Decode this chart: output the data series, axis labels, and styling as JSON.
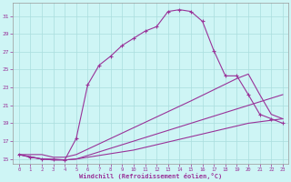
{
  "xlabel": "Windchill (Refroidissement éolien,°C)",
  "background_color": "#cef5f5",
  "grid_color": "#aadddd",
  "line_color": "#993399",
  "xlim": [
    -0.5,
    23.5
  ],
  "ylim": [
    14.5,
    32.5
  ],
  "yticks": [
    15,
    17,
    19,
    21,
    23,
    25,
    27,
    29,
    31
  ],
  "xticks": [
    0,
    1,
    2,
    3,
    4,
    5,
    6,
    7,
    8,
    9,
    10,
    11,
    12,
    13,
    14,
    15,
    16,
    17,
    18,
    19,
    20,
    21,
    22,
    23
  ],
  "series1_x": [
    0,
    1,
    2,
    3,
    4,
    5,
    6,
    7,
    8,
    9,
    10,
    11,
    12,
    13,
    14,
    15,
    16,
    17,
    18,
    19,
    20,
    21,
    22,
    23
  ],
  "series1_y": [
    15.5,
    15.2,
    15.0,
    15.0,
    14.9,
    17.3,
    23.3,
    25.5,
    26.5,
    27.7,
    28.5,
    29.3,
    29.8,
    31.5,
    31.7,
    31.5,
    30.4,
    27.1,
    24.3,
    24.3,
    22.2,
    20.0,
    19.5,
    19.0
  ],
  "series2_x": [
    0,
    2,
    3,
    4,
    5,
    10,
    15,
    19,
    20,
    21,
    22,
    23
  ],
  "series2_y": [
    15.5,
    15.5,
    15.2,
    15.2,
    15.5,
    18.5,
    21.5,
    24.0,
    24.5,
    22.2,
    20.0,
    19.5
  ],
  "series3_x": [
    0,
    2,
    3,
    4,
    5,
    10,
    15,
    20,
    23
  ],
  "series3_y": [
    15.5,
    15.0,
    14.9,
    14.9,
    15.0,
    17.0,
    19.0,
    21.0,
    22.2
  ],
  "series4_x": [
    0,
    2,
    3,
    4,
    5,
    10,
    15,
    20,
    23
  ],
  "series4_y": [
    15.5,
    15.0,
    14.9,
    14.9,
    15.0,
    16.0,
    17.5,
    19.0,
    19.5
  ]
}
